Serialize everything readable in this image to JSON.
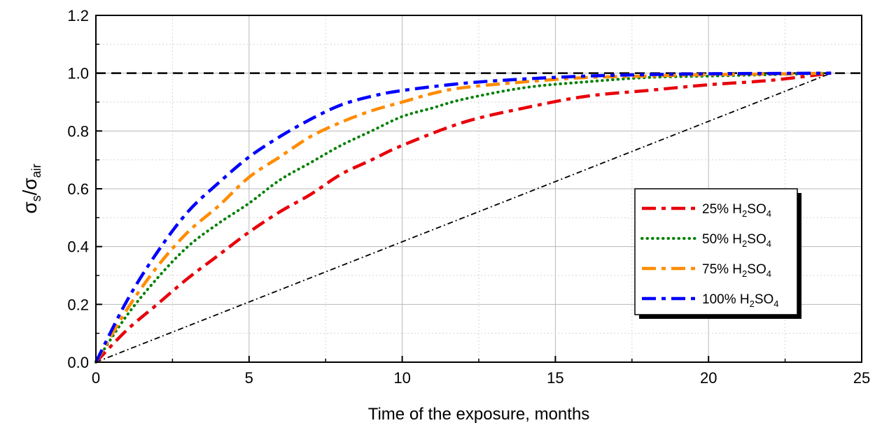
{
  "chart_data": {
    "type": "line",
    "xlabel": "Time of the exposure, months",
    "ylabel": {
      "main": "σ",
      "sub1": "s",
      "slash": "/σ",
      "sub2": "air"
    },
    "xlim": [
      0,
      25
    ],
    "ylim": [
      0,
      1.2
    ],
    "xticks": [
      0,
      5,
      10,
      15,
      20,
      25
    ],
    "xtick_labels": [
      "0",
      "5",
      "10",
      "15",
      "20",
      "25"
    ],
    "yticks": [
      0,
      0.2,
      0.4,
      0.6,
      0.8,
      1.0,
      1.2
    ],
    "ytick_labels": [
      "0.0",
      "0.2",
      "0.4",
      "0.6",
      "0.8",
      "1.0",
      "1.2"
    ],
    "grid": true,
    "legend_position": "center-right",
    "series": [
      {
        "name": {
          "prefix": "25% H",
          "sub1": "2",
          "mid": "SO",
          "sub2": "4"
        },
        "color": "#e8000b",
        "dash": "dash-dot",
        "x": [
          0,
          1,
          2,
          3,
          4,
          5,
          6,
          7,
          8,
          9,
          10,
          12,
          14,
          16,
          18,
          20,
          22,
          24
        ],
        "y": [
          0,
          0.11,
          0.2,
          0.29,
          0.37,
          0.45,
          0.52,
          0.58,
          0.65,
          0.7,
          0.75,
          0.83,
          0.88,
          0.92,
          0.94,
          0.96,
          0.975,
          1.0
        ]
      },
      {
        "name": {
          "prefix": "50% H",
          "sub1": "2",
          "mid": "SO",
          "sub2": "4"
        },
        "color": "#008000",
        "dash": "dot",
        "x": [
          0,
          1,
          2,
          3,
          4,
          5,
          6,
          7,
          8,
          9,
          10,
          11,
          12,
          14,
          16,
          18,
          20,
          22,
          24
        ],
        "y": [
          0,
          0.16,
          0.29,
          0.4,
          0.48,
          0.55,
          0.63,
          0.69,
          0.75,
          0.8,
          0.85,
          0.88,
          0.91,
          0.95,
          0.97,
          0.985,
          0.99,
          0.995,
          1.0
        ]
      },
      {
        "name": {
          "prefix": "75% H",
          "sub1": "2",
          "mid": "SO",
          "sub2": "4"
        },
        "color": "#ff8c00",
        "dash": "dash-dot",
        "x": [
          0,
          1,
          2,
          3,
          4,
          5,
          6,
          7,
          8,
          9,
          10,
          11,
          12,
          14,
          16,
          18,
          20,
          22,
          24
        ],
        "y": [
          0,
          0.18,
          0.33,
          0.45,
          0.54,
          0.64,
          0.71,
          0.78,
          0.83,
          0.87,
          0.9,
          0.93,
          0.95,
          0.97,
          0.985,
          0.99,
          0.995,
          0.997,
          1.0
        ]
      },
      {
        "name": {
          "prefix": "100% H",
          "sub1": "2",
          "mid": "SO",
          "sub2": "4"
        },
        "color": "#0000ff",
        "dash": "dash-dot",
        "x": [
          0,
          1,
          2,
          3,
          4,
          5,
          6,
          7,
          8,
          9,
          10,
          12,
          14,
          16,
          18,
          20,
          22,
          24
        ],
        "y": [
          0,
          0.21,
          0.38,
          0.52,
          0.62,
          0.71,
          0.78,
          0.84,
          0.89,
          0.92,
          0.94,
          0.965,
          0.98,
          0.99,
          0.995,
          0.998,
          0.999,
          1.0
        ]
      }
    ],
    "reference_lines": [
      {
        "type": "horizontal",
        "y": 1.0,
        "color": "#000000",
        "dash": "dash"
      },
      {
        "type": "diagonal",
        "x": [
          0,
          24
        ],
        "y": [
          0,
          1.0
        ],
        "color": "#000000",
        "dash": "dash-dot"
      }
    ]
  }
}
